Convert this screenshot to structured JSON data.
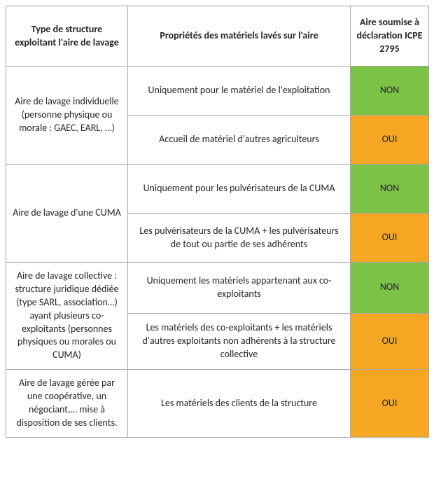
{
  "colors": {
    "green": "#7cc247",
    "orange": "#f5a623",
    "border": "#a6a6a6",
    "text": "#262626",
    "bg": "#ffffff"
  },
  "headers": {
    "col1": "Type de structure exploitant l'aire de lavage",
    "col2": "Propriétés des matériels lavés sur l'aire",
    "col3": "Aire soumise à déclaration ICPE 2795"
  },
  "rows": [
    {
      "structure": "Aire de lavage individuelle (personne physique ou morale : GAEC, EARL, …)",
      "cases": [
        {
          "prop": "Uniquement pour le matériel de l'exploitation",
          "status": "NON",
          "color": "green"
        },
        {
          "prop": "Accueil de matériel d'autres agriculteurs",
          "status": "OUI",
          "color": "orange"
        }
      ]
    },
    {
      "structure": "Aire de lavage d'une CUMA",
      "cases": [
        {
          "prop": "Uniquement pour les pulvérisateurs de la CUMA",
          "status": "NON",
          "color": "green"
        },
        {
          "prop": "Les pulvérisateurs de la CUMA + les pulvérisateurs de tout ou partie de ses adhérents",
          "status": "OUI",
          "color": "orange"
        }
      ]
    },
    {
      "structure": "Aire de lavage collective : structure juridique dédiée (type SARL, association…)  ayant plusieurs co-exploitants (personnes physiques ou morales ou CUMA)",
      "cases": [
        {
          "prop": "Uniquement les matériels appartenant aux co-exploitants",
          "status": "NON",
          "color": "green"
        },
        {
          "prop": "Les matériels des co-exploitants + les matériels d'autres exploitants non adhérents à la structure collective",
          "status": "OUI",
          "color": "orange"
        }
      ]
    },
    {
      "structure": "Aire de lavage gérée par une coopérative, un négociant,… mise à disposition de ses clients.",
      "cases": [
        {
          "prop": "Les matériels des clients de la structure",
          "status": "OUI",
          "color": "orange"
        }
      ]
    }
  ],
  "row_heights": {
    "header": 86,
    "default": 70
  }
}
